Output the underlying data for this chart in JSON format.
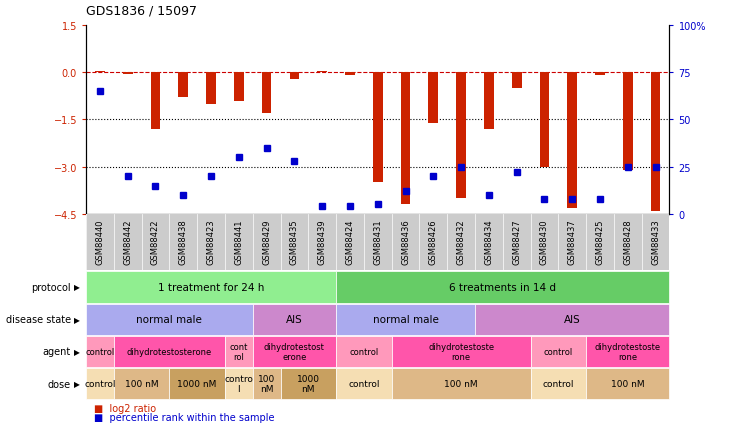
{
  "title": "GDS1836 / 15097",
  "samples": [
    "GSM88440",
    "GSM88442",
    "GSM88422",
    "GSM88438",
    "GSM88423",
    "GSM88441",
    "GSM88429",
    "GSM88435",
    "GSM88439",
    "GSM88424",
    "GSM88431",
    "GSM88436",
    "GSM88426",
    "GSM88432",
    "GSM88434",
    "GSM88427",
    "GSM88430",
    "GSM88437",
    "GSM88425",
    "GSM88428",
    "GSM88433"
  ],
  "log2_ratio": [
    0.05,
    -0.05,
    -1.8,
    -0.8,
    -1.0,
    -0.9,
    -1.3,
    -0.2,
    0.05,
    -0.1,
    -3.5,
    -4.2,
    -1.6,
    -4.0,
    -1.8,
    -0.5,
    -3.0,
    -4.3,
    -0.1,
    -3.1,
    -4.4
  ],
  "percentile": [
    65,
    20,
    15,
    10,
    20,
    30,
    35,
    28,
    4,
    4,
    5,
    12,
    20,
    25,
    10,
    22,
    8,
    8,
    8,
    25,
    25
  ],
  "ylim_left": [
    -4.5,
    1.5
  ],
  "ylim_right": [
    0,
    100
  ],
  "protocol_groups": [
    {
      "label": "1 treatment for 24 h",
      "start": 0,
      "end": 9,
      "color": "#90ee90"
    },
    {
      "label": "6 treatments in 14 d",
      "start": 9,
      "end": 21,
      "color": "#66cc66"
    }
  ],
  "disease_state_groups": [
    {
      "label": "normal male",
      "start": 0,
      "end": 6,
      "color": "#aaaaee"
    },
    {
      "label": "AIS",
      "start": 6,
      "end": 9,
      "color": "#cc88cc"
    },
    {
      "label": "normal male",
      "start": 9,
      "end": 14,
      "color": "#aaaaee"
    },
    {
      "label": "AIS",
      "start": 14,
      "end": 21,
      "color": "#cc88cc"
    }
  ],
  "agent_groups": [
    {
      "label": "control",
      "start": 0,
      "end": 1,
      "color": "#ff99bb"
    },
    {
      "label": "dihydrotestosterone",
      "start": 1,
      "end": 5,
      "color": "#ff55aa"
    },
    {
      "label": "cont\nrol",
      "start": 5,
      "end": 6,
      "color": "#ff99bb"
    },
    {
      "label": "dihydrotestost\nerone",
      "start": 6,
      "end": 9,
      "color": "#ff55aa"
    },
    {
      "label": "control",
      "start": 9,
      "end": 11,
      "color": "#ff99bb"
    },
    {
      "label": "dihydrotestoste\nrone",
      "start": 11,
      "end": 16,
      "color": "#ff55aa"
    },
    {
      "label": "control",
      "start": 16,
      "end": 18,
      "color": "#ff99bb"
    },
    {
      "label": "dihydrotestoste\nrone",
      "start": 18,
      "end": 21,
      "color": "#ff55aa"
    }
  ],
  "dose_groups": [
    {
      "label": "control",
      "start": 0,
      "end": 1,
      "color": "#f5deb3"
    },
    {
      "label": "100 nM",
      "start": 1,
      "end": 3,
      "color": "#deb887"
    },
    {
      "label": "1000 nM",
      "start": 3,
      "end": 5,
      "color": "#c8a060"
    },
    {
      "label": "contro\nl",
      "start": 5,
      "end": 6,
      "color": "#f5deb3"
    },
    {
      "label": "100\nnM",
      "start": 6,
      "end": 7,
      "color": "#deb887"
    },
    {
      "label": "1000\nnM",
      "start": 7,
      "end": 9,
      "color": "#c8a060"
    },
    {
      "label": "control",
      "start": 9,
      "end": 11,
      "color": "#f5deb3"
    },
    {
      "label": "100 nM",
      "start": 11,
      "end": 16,
      "color": "#deb887"
    },
    {
      "label": "control",
      "start": 16,
      "end": 18,
      "color": "#f5deb3"
    },
    {
      "label": "100 nM",
      "start": 18,
      "end": 21,
      "color": "#deb887"
    }
  ],
  "bar_color": "#cc2200",
  "dot_color": "#0000cc",
  "dashed_line_color": "#cc0000",
  "dotted_line_color": "#000000",
  "tick_color_left": "#cc2200",
  "tick_color_right": "#0000cc",
  "xtick_bg": "#cccccc",
  "row_labels": [
    "protocol",
    "disease state",
    "agent",
    "dose"
  ],
  "legend_items": [
    {
      "label": "log2 ratio",
      "color": "#cc2200"
    },
    {
      "label": "percentile rank within the sample",
      "color": "#0000cc"
    }
  ]
}
